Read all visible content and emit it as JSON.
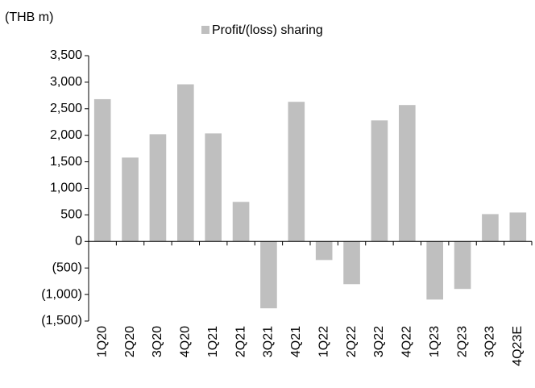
{
  "chart_data": {
    "type": "bar",
    "y_label": "(THB m)",
    "categories": [
      "1Q20",
      "2Q20",
      "3Q20",
      "4Q20",
      "1Q21",
      "2Q21",
      "3Q21",
      "4Q21",
      "1Q22",
      "2Q22",
      "3Q22",
      "4Q22",
      "1Q23",
      "2Q23",
      "3Q23",
      "4Q23E"
    ],
    "series": [
      {
        "name": "Profit/(loss) sharing",
        "color": "#bfbfbf",
        "values": [
          2680,
          1580,
          2020,
          2960,
          2035,
          745,
          -1260,
          2630,
          -350,
          -805,
          2280,
          2570,
          -1095,
          -895,
          515,
          545
        ]
      }
    ],
    "ylim": [
      -1500,
      3500
    ],
    "yticks": [
      {
        "value": -1500,
        "label": "(1,500)"
      },
      {
        "value": -1000,
        "label": "(1,000)"
      },
      {
        "value": -500,
        "label": "(500)"
      },
      0,
      500,
      {
        "value": 1000,
        "label": "1,000"
      },
      {
        "value": 1500,
        "label": "1,500"
      },
      {
        "value": 2000,
        "label": "2,000"
      },
      {
        "value": 2500,
        "label": "2,500"
      },
      {
        "value": 3000,
        "label": "3,000"
      },
      {
        "value": 3500,
        "label": "3,500"
      }
    ],
    "legend": "top"
  }
}
